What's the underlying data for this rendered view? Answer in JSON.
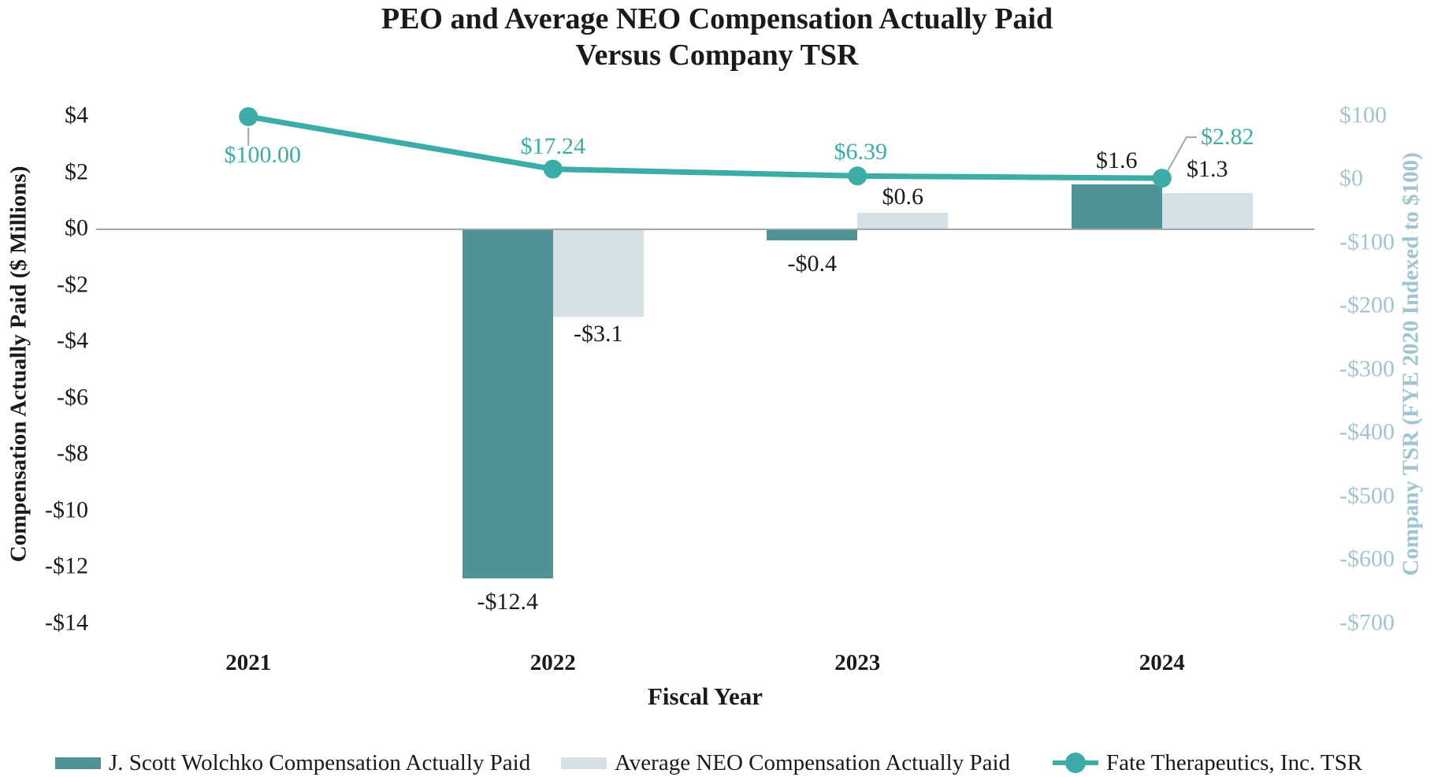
{
  "title": {
    "line1": "PEO and Average NEO Compensation Actually Paid",
    "line2": "Versus Company TSR"
  },
  "left_axis": {
    "title": "Compensation Actually Paid ($ Millions)",
    "ticks": [
      {
        "label": "$4",
        "value": 4
      },
      {
        "label": "$2",
        "value": 2
      },
      {
        "label": "$0",
        "value": 0
      },
      {
        "label": "-$2",
        "value": -2
      },
      {
        "label": "-$4",
        "value": -4
      },
      {
        "label": "-$6",
        "value": -6
      },
      {
        "label": "-$8",
        "value": -8
      },
      {
        "label": "-$10",
        "value": -10
      },
      {
        "label": "-$12",
        "value": -12
      },
      {
        "label": "-$14",
        "value": -14
      }
    ]
  },
  "right_axis": {
    "title": "Company TSR (FYE 2020 Indexed to $100)",
    "ticks": [
      {
        "label": "$100",
        "value": 100
      },
      {
        "label": "$0",
        "value": 0
      },
      {
        "label": "-$100",
        "value": -100
      },
      {
        "label": "-$200",
        "value": -200
      },
      {
        "label": "-$300",
        "value": -300
      },
      {
        "label": "-$400",
        "value": -400
      },
      {
        "label": "-$500",
        "value": -500
      },
      {
        "label": "-$600",
        "value": -600
      },
      {
        "label": "-$700",
        "value": -700
      }
    ]
  },
  "x_axis": {
    "title": "Fiscal Year",
    "categories": [
      "2021",
      "2022",
      "2023",
      "2024"
    ]
  },
  "legend": [
    {
      "label": "J. Scott Wolchko Compensation Actually Paid",
      "type": "bar",
      "color": "#4F9396"
    },
    {
      "label": "Average NEO Compensation Actually Paid",
      "type": "bar",
      "color": "#D4E0E5"
    },
    {
      "label": "Fate Therapeutics, Inc. TSR",
      "type": "line",
      "color": "#3BADA6"
    }
  ],
  "colors": {
    "peo_bar": "#4F9396",
    "neo_bar": "#D4E0E5",
    "tsr_line": "#3BADA6",
    "right_axis_text": "#A0C5D1",
    "axis_gray": "#A6A6A6",
    "text": "#1a1a1a"
  },
  "chart_data": {
    "type": "bar",
    "subtype": "grouped-bars-with-line",
    "title": "PEO and Average NEO Compensation Actually Paid Versus Company TSR",
    "xlabel": "Fiscal Year",
    "categories": [
      "2021",
      "2022",
      "2023",
      "2024"
    ],
    "left_ylabel": "Compensation Actually Paid ($ Millions)",
    "right_ylabel": "Company TSR (FYE 2020 Indexed to $100)",
    "left_ylim": [
      -14,
      4
    ],
    "right_ylim": [
      -700,
      100
    ],
    "grid": false,
    "legend_position": "bottom",
    "series": [
      {
        "name": "J. Scott Wolchko Compensation Actually Paid",
        "type": "bar",
        "axis": "left",
        "values": [
          null,
          -12.4,
          -0.4,
          1.6
        ],
        "labels": [
          "",
          "-$12.4",
          "-$0.4",
          "$1.6"
        ],
        "label_dy": [
          0,
          0,
          0,
          0
        ]
      },
      {
        "name": "Average NEO Compensation Actually Paid",
        "type": "bar",
        "axis": "left",
        "values": [
          null,
          -3.1,
          0.6,
          1.3
        ],
        "labels": [
          "",
          "-$3.1",
          "$0.6",
          "$1.3"
        ],
        "label_dy": [
          0,
          -8,
          10,
          0
        ]
      },
      {
        "name": "Fate Therapeutics, Inc. TSR",
        "type": "line",
        "axis": "right",
        "values": [
          100.0,
          17.24,
          6.39,
          2.82
        ],
        "labels": [
          "$100.00",
          "$17.24",
          "$6.39",
          "$2.82"
        ],
        "label_offsets": [
          [
            18,
            49
          ],
          [
            0,
            -29
          ],
          [
            4,
            -30
          ],
          [
            83,
            -52
          ]
        ],
        "leaders": [
          "vertical",
          null,
          null,
          "elbow"
        ]
      }
    ]
  }
}
